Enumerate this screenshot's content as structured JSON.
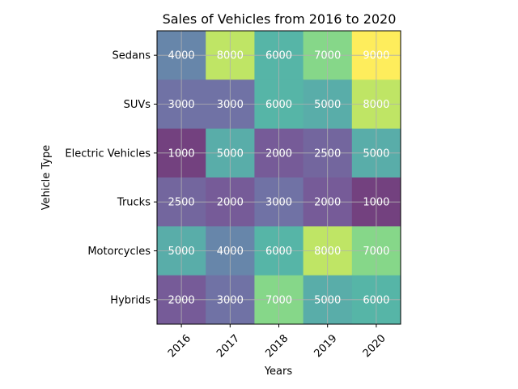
{
  "chart_data": {
    "type": "heatmap",
    "title": "Sales of Vehicles from 2016 to 2020",
    "xlabel": "Years",
    "ylabel": "Vehicle Type",
    "x_categories": [
      "2016",
      "2017",
      "2018",
      "2019",
      "2020"
    ],
    "y_categories": [
      "Sedans",
      "SUVs",
      "Electric Vehicles",
      "Trucks",
      "Motorcycles",
      "Hybrids"
    ],
    "values": [
      [
        4000,
        8000,
        6000,
        7000,
        9000
      ],
      [
        3000,
        3000,
        6000,
        5000,
        8000
      ],
      [
        1000,
        5000,
        2000,
        2500,
        5000
      ],
      [
        2500,
        2000,
        3000,
        2000,
        1000
      ],
      [
        5000,
        4000,
        6000,
        8000,
        7000
      ],
      [
        2000,
        3000,
        7000,
        5000,
        6000
      ]
    ],
    "colormap": "viridis",
    "alpha": 0.75,
    "vmin": 1000,
    "vmax": 9000,
    "grid": true,
    "x_tick_rotation": 45
  }
}
